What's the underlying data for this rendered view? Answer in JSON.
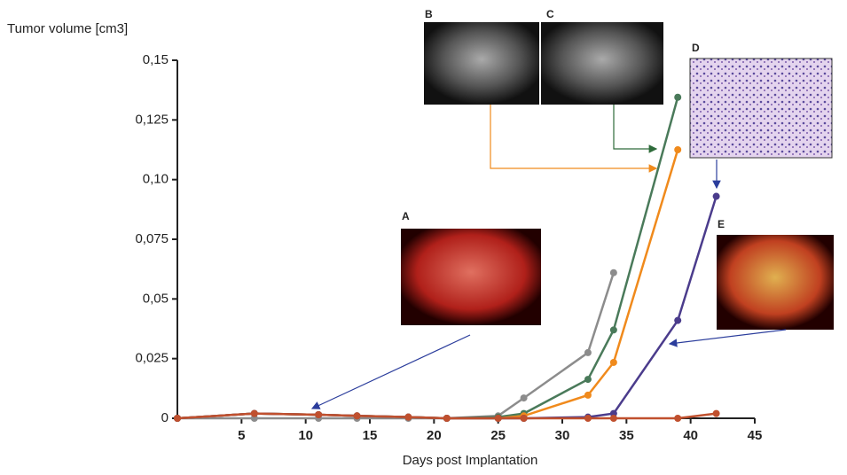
{
  "chart_data": {
    "type": "line",
    "x_label": "Days post Implantation",
    "y_label": "Tumor volume [cm3]",
    "xlim": [
      0,
      45
    ],
    "xticks": [
      5,
      10,
      15,
      20,
      25,
      30,
      35,
      40,
      45
    ],
    "ylim": [
      0,
      0.15
    ],
    "yticks": [
      0,
      {
        "value": 0.025,
        "label": "0,025"
      },
      {
        "value": 0.05,
        "label": "0,05"
      },
      {
        "value": 0.075,
        "label": "0,075"
      },
      {
        "value": 0.1,
        "label": "0,10"
      },
      {
        "value": 0.125,
        "label": "0,125"
      },
      {
        "value": 0.15,
        "label": "0,15"
      }
    ],
    "series": [
      {
        "color": "#8c8c8c",
        "x": [
          0,
          6,
          11,
          14,
          18,
          21,
          25,
          27,
          32,
          34
        ],
        "values": [
          0,
          0,
          0,
          0,
          0,
          0,
          0.001,
          0.0085,
          0.0275,
          0.061
        ]
      },
      {
        "color": "#4a7a5a",
        "x": [
          0,
          6,
          11,
          14,
          18,
          21,
          25,
          27,
          32,
          34,
          39
        ],
        "values": [
          0,
          0.002,
          0.0015,
          0.001,
          0.0005,
          0,
          0.0005,
          0.002,
          0.0163,
          0.037,
          0.1345
        ]
      },
      {
        "color": "#f08a1c",
        "x": [
          0,
          6,
          11,
          14,
          18,
          21,
          25,
          27,
          32,
          34,
          39
        ],
        "values": [
          0,
          0.002,
          0.0015,
          0.001,
          0.0005,
          0,
          0,
          0.001,
          0.0097,
          0.0234,
          0.1125
        ]
      },
      {
        "color": "#4b3c8c",
        "x": [
          0,
          6,
          11,
          14,
          18,
          21,
          25,
          27,
          32,
          34,
          39,
          42
        ],
        "values": [
          0,
          0.002,
          0.0015,
          0.001,
          0.0005,
          0,
          0,
          0,
          0.0005,
          0.002,
          0.041,
          0.093
        ]
      },
      {
        "color": "#c0502e",
        "x": [
          0,
          6,
          11,
          14,
          18,
          21,
          25,
          27,
          32,
          34,
          39,
          42
        ],
        "values": [
          0,
          0.002,
          0.0015,
          0.001,
          0.0005,
          0,
          0,
          0,
          0,
          0,
          0,
          0.002
        ]
      }
    ],
    "panels": [
      "A",
      "B",
      "C",
      "D",
      "E"
    ]
  }
}
